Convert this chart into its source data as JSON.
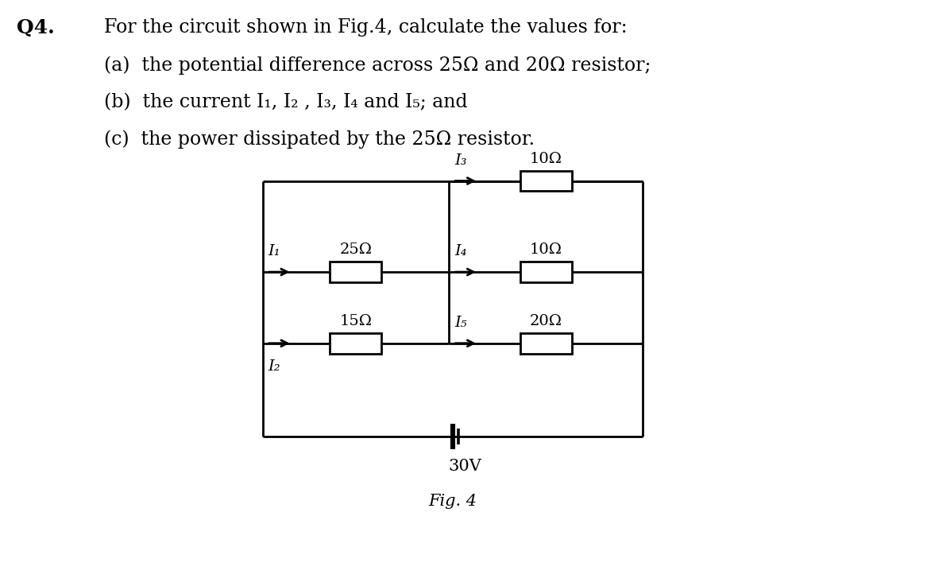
{
  "title_q": "Q4.",
  "line1": "For the circuit shown in Fig.4, calculate the values for:",
  "line2": "(a)  the potential difference across 25Ω and 20Ω resistor;",
  "line3": "(b)  the current I₁, I₂ , I₃, I₄ and I₅; and",
  "line4": "(c)  the power dissipated by the 25Ω resistor.",
  "fig_label": "Fig. 4",
  "voltage_label": "30V",
  "R25_label": "25Ω",
  "R15_label": "15Ω",
  "R10top_label": "10Ω",
  "R10mid_label": "10Ω",
  "R20_label": "20Ω",
  "I1_label": "I₁",
  "I2_label": "I₂",
  "I3_label": "I₃",
  "I4_label": "I₄",
  "I5_label": "I₅",
  "bg": "#ffffff",
  "lc": "#000000"
}
